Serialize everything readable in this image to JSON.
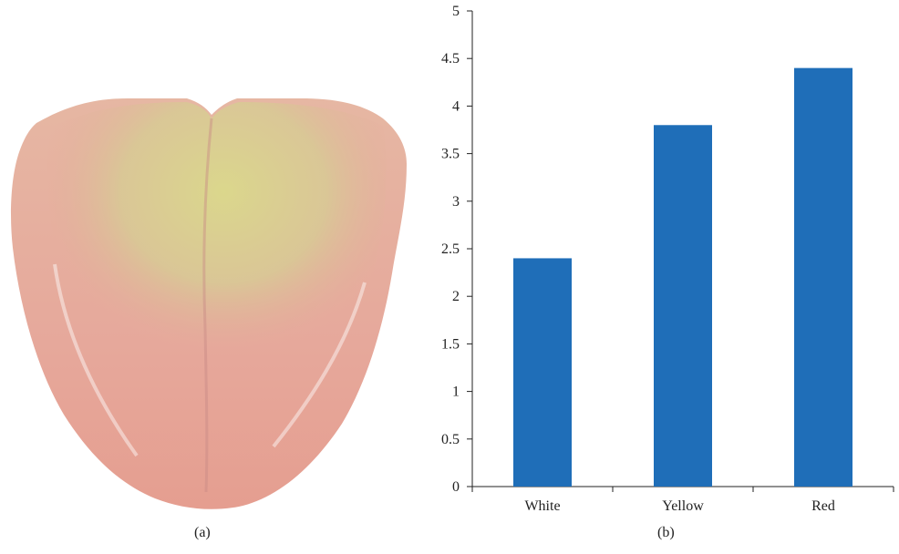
{
  "figure": {
    "panel_a_caption": "(a)",
    "panel_b_caption": "(b)",
    "panel_a_image": "tongue-photo"
  },
  "colors": {
    "bar": "#1f6eb8",
    "axis": "#222222",
    "tongue_base": "#e3a798",
    "tongue_coating": "#d9d48a",
    "tongue_edge": "#e89a8f"
  },
  "chart_data": {
    "type": "bar",
    "categories": [
      "White",
      "Yellow",
      "Red"
    ],
    "values": [
      2.4,
      3.8,
      4.4
    ],
    "title": "",
    "xlabel": "",
    "ylabel": "",
    "ylim": [
      0,
      5
    ],
    "yticks": [
      "0",
      "0.5",
      "1",
      "1.5",
      "2",
      "2.5",
      "3",
      "3.5",
      "4",
      "4.5",
      "5"
    ],
    "grid": false,
    "legend": "none"
  }
}
